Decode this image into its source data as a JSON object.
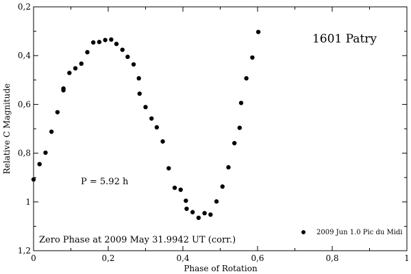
{
  "chart_data": {
    "type": "scatter",
    "xlabel": "Phase of Rotation",
    "ylabel": "Relative C Magnitude",
    "xlim": [
      0,
      1
    ],
    "ylim": [
      0.2,
      1.2
    ],
    "y_inverted": true,
    "grid": false,
    "x_ticks": [
      0,
      0.2,
      0.4,
      0.6,
      0.8,
      1
    ],
    "x_tick_labels": [
      "0",
      "0,2",
      "0,4",
      "0,6",
      "0,8",
      "1"
    ],
    "y_ticks": [
      0.2,
      0.4,
      0.6,
      0.8,
      1,
      1.2
    ],
    "y_tick_labels": [
      "0,2",
      "0,4",
      "0,6",
      "0,8",
      "1",
      "1,2"
    ],
    "annotations": {
      "object": "1601 Patry",
      "period": "P = 5.92 h",
      "zero_phase": "Zero Phase at 2009 May 31.9942 UT (corr.)"
    },
    "legend_placement": "bottom-right",
    "series": [
      {
        "name": "2009 Jun 1.0 Pic du Midi",
        "color": "#000000",
        "points": [
          [
            0.0,
            0.908
          ],
          [
            0.016,
            0.845
          ],
          [
            0.032,
            0.798
          ],
          [
            0.048,
            0.712
          ],
          [
            0.064,
            0.632
          ],
          [
            0.08,
            0.542
          ],
          [
            0.08,
            0.535
          ],
          [
            0.096,
            0.471
          ],
          [
            0.112,
            0.452
          ],
          [
            0.128,
            0.433
          ],
          [
            0.144,
            0.386
          ],
          [
            0.16,
            0.346
          ],
          [
            0.176,
            0.344
          ],
          [
            0.192,
            0.336
          ],
          [
            0.208,
            0.334
          ],
          [
            0.222,
            0.352
          ],
          [
            0.238,
            0.376
          ],
          [
            0.252,
            0.405
          ],
          [
            0.268,
            0.436
          ],
          [
            0.282,
            0.493
          ],
          [
            0.284,
            0.556
          ],
          [
            0.3,
            0.611
          ],
          [
            0.316,
            0.658
          ],
          [
            0.33,
            0.694
          ],
          [
            0.346,
            0.752
          ],
          [
            0.362,
            0.862
          ],
          [
            0.378,
            0.942
          ],
          [
            0.394,
            0.95
          ],
          [
            0.408,
            0.995
          ],
          [
            0.41,
            1.028
          ],
          [
            0.426,
            1.042
          ],
          [
            0.442,
            1.065
          ],
          [
            0.458,
            1.046
          ],
          [
            0.474,
            1.052
          ],
          [
            0.49,
            0.998
          ],
          [
            0.506,
            0.937
          ],
          [
            0.522,
            0.858
          ],
          [
            0.538,
            0.759
          ],
          [
            0.552,
            0.696
          ],
          [
            0.556,
            0.594
          ],
          [
            0.57,
            0.493
          ],
          [
            0.586,
            0.408
          ],
          [
            0.602,
            0.303
          ]
        ]
      }
    ]
  }
}
